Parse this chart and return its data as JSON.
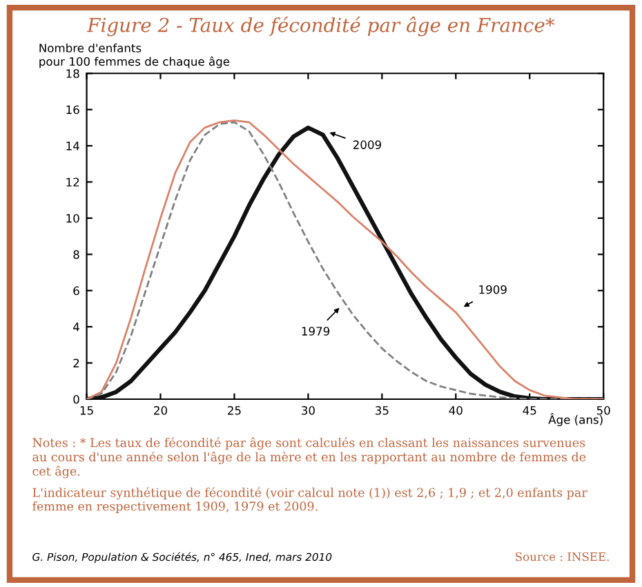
{
  "chart_data": {
    "type": "line",
    "title": "Figure 2 - Taux de fécondité par âge en France*",
    "ylabel": "Nombre d'enfants\npour 100 femmes de chaque âge",
    "xlabel": "Âge (ans)",
    "x": [
      15,
      16,
      17,
      18,
      19,
      20,
      21,
      22,
      23,
      24,
      25,
      26,
      27,
      28,
      29,
      30,
      31,
      32,
      33,
      34,
      35,
      36,
      37,
      38,
      39,
      40,
      41,
      42,
      43,
      44,
      45,
      46,
      47,
      48,
      49,
      50
    ],
    "series": [
      {
        "name": "1909",
        "color": "#d9826a",
        "line_style": "solid",
        "values": [
          0,
          0.4,
          2.0,
          4.5,
          7.3,
          10,
          12.5,
          14.2,
          15.0,
          15.3,
          15.4,
          15.3,
          14.6,
          13.8,
          13.0,
          12.3,
          11.6,
          10.9,
          10.1,
          9.4,
          8.7,
          7.9,
          7.0,
          6.2,
          5.5,
          4.8,
          3.8,
          2.8,
          1.8,
          1.0,
          0.5,
          0.2,
          0.1,
          0,
          0,
          0
        ]
      },
      {
        "name": "1979",
        "color": "#808080",
        "line_style": "dashed",
        "values": [
          0,
          0.3,
          1.5,
          3.5,
          6.0,
          8.5,
          11,
          13.2,
          14.6,
          15.2,
          15.3,
          14.8,
          13.5,
          12.0,
          10.3,
          8.7,
          7.2,
          5.9,
          4.7,
          3.7,
          2.8,
          2.1,
          1.5,
          1.0,
          0.7,
          0.5,
          0.3,
          0.2,
          0.1,
          0.05,
          0,
          0,
          0,
          0,
          0,
          0
        ]
      },
      {
        "name": "2009",
        "color": "#111111",
        "line_style": "solid",
        "values": [
          0,
          0.1,
          0.4,
          1.0,
          1.9,
          2.8,
          3.7,
          4.8,
          6.0,
          7.5,
          9.0,
          10.7,
          12.2,
          13.5,
          14.5,
          15.0,
          14.6,
          13.3,
          11.8,
          10.3,
          8.8,
          7.3,
          5.8,
          4.5,
          3.3,
          2.3,
          1.4,
          0.8,
          0.4,
          0.15,
          0.05,
          0,
          0,
          0,
          0,
          0
        ]
      }
    ],
    "xlim": [
      15,
      50
    ],
    "ylim": [
      0,
      18
    ],
    "xticks": [
      15,
      20,
      25,
      30,
      35,
      40,
      45,
      50
    ],
    "yticks": [
      0,
      2,
      4,
      6,
      8,
      10,
      12,
      14,
      16,
      18
    ],
    "grid": false,
    "legend": false,
    "annotations": [
      "Notes : * Les taux de fécondité par âge sont calculés en classant les naissances survenues au cours d'une année selon l'âge de la mère et en les rapportant au nombre de femmes de cet âge.",
      "L'indicateur synthétique de fécondité (voir calcul note (1)) est 2,6 ; 1,9 ; et 2,0 enfants par femme en respectivement 1909, 1979 et 2009.",
      "G. Pison, Population & Sociétés, n° 465, Ined, mars 2010",
      "Source : INSEE."
    ]
  }
}
